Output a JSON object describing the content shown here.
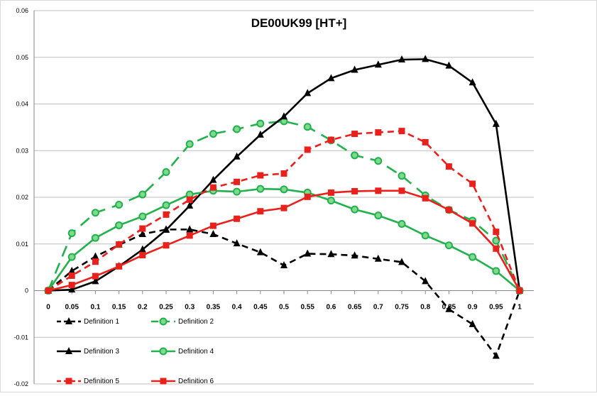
{
  "chart_data": {
    "type": "line",
    "title": "DE00UK99 [HT+]",
    "xlabel": "",
    "ylabel": "",
    "categories": [
      "0",
      "0.05",
      "0.1",
      "0.15",
      "0.2",
      "0.25",
      "0.3",
      "0.35",
      "0.4",
      "0.45",
      "0.5",
      "0.55",
      "0.6",
      "0.65",
      "0.7",
      "0.75",
      "0.8",
      "0.85",
      "0.9",
      "0.95",
      "1"
    ],
    "y_ticks": [
      "-0.02",
      "-0.01",
      "0",
      "0.01",
      "0.02",
      "0.03",
      "0.04",
      "0.05",
      "0.06"
    ],
    "ylim": [
      -0.02,
      0.06
    ],
    "grid": "horizontal",
    "legend_position": "bottom-left, inside plot",
    "series": [
      {
        "name": "Definition 1",
        "color": "#000000",
        "dash": "dashed",
        "marker": "triangle",
        "values": [
          0.0,
          0.0042,
          0.0073,
          0.0098,
          0.0121,
          0.0131,
          0.0131,
          0.0121,
          0.0101,
          0.0082,
          0.0054,
          0.0079,
          0.0078,
          0.0075,
          0.0068,
          0.0061,
          0.002,
          -0.004,
          -0.0072,
          -0.014,
          0.0
        ]
      },
      {
        "name": "Definition 2",
        "color": "#22b14c",
        "dash": "dashed",
        "marker": "circle",
        "values": [
          0.0,
          0.0123,
          0.0167,
          0.0184,
          0.0206,
          0.0254,
          0.0314,
          0.0336,
          0.0346,
          0.0358,
          0.0363,
          0.0351,
          0.0322,
          0.029,
          0.0278,
          0.0246,
          0.0204,
          0.0173,
          0.015,
          0.0107,
          0.0
        ]
      },
      {
        "name": "Definition 3",
        "color": "#000000",
        "dash": "solid",
        "marker": "triangle",
        "values": [
          0.0,
          0.0002,
          0.002,
          0.0052,
          0.0088,
          0.013,
          0.0182,
          0.0237,
          0.0287,
          0.0334,
          0.0373,
          0.0423,
          0.0455,
          0.0473,
          0.0484,
          0.0495,
          0.0496,
          0.0482,
          0.0446,
          0.0357,
          0.0
        ]
      },
      {
        "name": "Definition 4",
        "color": "#22b14c",
        "dash": "solid",
        "marker": "circle",
        "values": [
          0.0,
          0.0072,
          0.0113,
          0.014,
          0.0159,
          0.0183,
          0.0206,
          0.0214,
          0.0212,
          0.0218,
          0.0217,
          0.021,
          0.0193,
          0.0174,
          0.0161,
          0.0143,
          0.0118,
          0.0097,
          0.0072,
          0.0042,
          0.0
        ]
      },
      {
        "name": "Definition 5",
        "color": "#e8211d",
        "dash": "dashed",
        "marker": "square",
        "values": [
          0.0,
          0.0032,
          0.0062,
          0.0099,
          0.0133,
          0.0163,
          0.0195,
          0.0221,
          0.0233,
          0.0247,
          0.0251,
          0.0302,
          0.0323,
          0.0336,
          0.0339,
          0.0342,
          0.0318,
          0.0266,
          0.0229,
          0.0126,
          0.0
        ]
      },
      {
        "name": "Definition 6",
        "color": "#e8211d",
        "dash": "solid",
        "marker": "square",
        "values": [
          0.0,
          0.0012,
          0.0031,
          0.0052,
          0.0076,
          0.0097,
          0.0118,
          0.0139,
          0.0154,
          0.017,
          0.0177,
          0.0201,
          0.021,
          0.0213,
          0.0214,
          0.0214,
          0.0198,
          0.0173,
          0.0144,
          0.009,
          0.0
        ]
      }
    ]
  }
}
